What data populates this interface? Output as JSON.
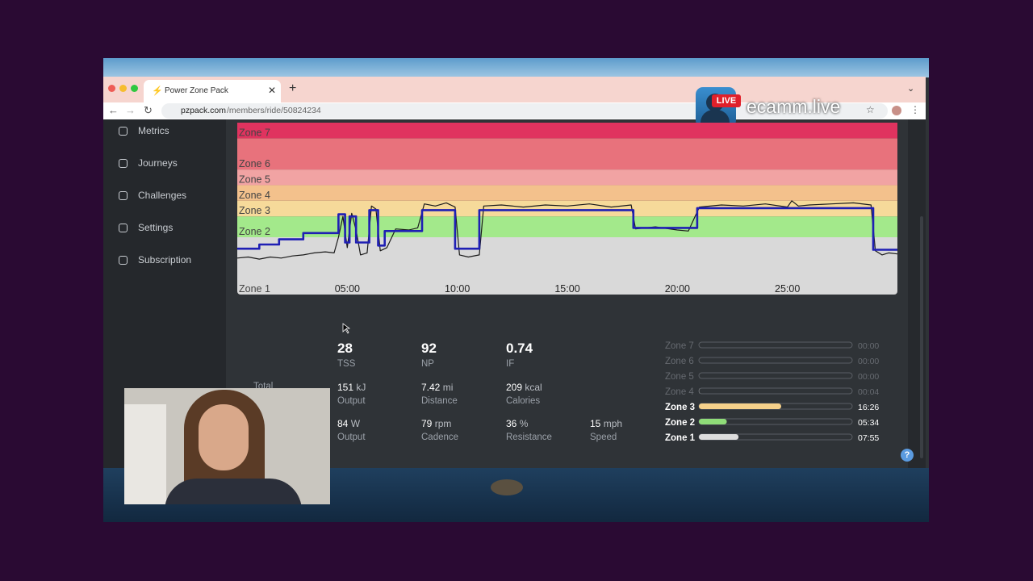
{
  "browser": {
    "tab_title": "Power Zone Pack",
    "url_domain": "pzpack.com",
    "url_path": "/members/ride/50824234"
  },
  "overlay": {
    "badge": "LIVE",
    "brand": "ecamm.live"
  },
  "sidebar": [
    "Metrics",
    "Journeys",
    "Challenges",
    "Settings",
    "Subscription"
  ],
  "chart_data": {
    "type": "line",
    "xlim": [
      0,
      30
    ],
    "xticks": [
      {
        "value": 5,
        "label": "05:00"
      },
      {
        "value": 10,
        "label": "10:00"
      },
      {
        "value": 15,
        "label": "15:00"
      },
      {
        "value": 20,
        "label": "20:00"
      },
      {
        "value": 25,
        "label": "25:00"
      }
    ],
    "ylim": [
      0,
      165
    ],
    "zones": [
      {
        "label": "Zone 1",
        "from": 0,
        "to": 55,
        "color": "#d9d9d9"
      },
      {
        "label": "Zone 2",
        "from": 55,
        "to": 75,
        "color": "#a3e98b"
      },
      {
        "label": "Zone 3",
        "from": 75,
        "to": 90,
        "color": "#f6da9a"
      },
      {
        "label": "Zone 4",
        "from": 90,
        "to": 105,
        "color": "#f3c18c"
      },
      {
        "label": "Zone 5",
        "from": 105,
        "to": 120,
        "color": "#f1a3a3"
      },
      {
        "label": "Zone 6",
        "from": 120,
        "to": 150,
        "color": "#e8727c"
      },
      {
        "label": "Zone 7",
        "from": 150,
        "to": 165,
        "color": "#e0335f"
      }
    ],
    "series": [
      {
        "color": "#1a1a1a",
        "width": 1.2,
        "x": [
          0,
          0.5,
          1,
          1.5,
          2,
          2.5,
          3,
          3.5,
          4,
          4.4,
          4.6,
          4.8,
          5.0,
          5.2,
          5.4,
          5.6,
          5.9,
          6.1,
          6.3,
          6.5,
          6.8,
          7.2,
          7.8,
          8.2,
          8.5,
          9,
          9.5,
          9.9,
          10.1,
          10.5,
          11,
          11.2,
          12,
          13,
          14,
          15,
          16,
          17,
          17.9,
          18.1,
          19,
          20,
          20.5,
          21,
          22,
          23,
          24,
          25,
          25.2,
          25.5,
          26,
          27,
          28,
          28.8,
          29,
          29.3,
          29.6,
          30
        ],
        "values": [
          35,
          36,
          34,
          36,
          35,
          37,
          38,
          40,
          41,
          40,
          55,
          75,
          45,
          78,
          62,
          38,
          40,
          85,
          82,
          42,
          45,
          63,
          62,
          64,
          87,
          85,
          88,
          84,
          38,
          36,
          38,
          85,
          86,
          84,
          86,
          85,
          87,
          84,
          86,
          63,
          65,
          62,
          61,
          84,
          86,
          85,
          87,
          84,
          90,
          85,
          86,
          87,
          88,
          86,
          42,
          38,
          40,
          39
        ]
      },
      {
        "color": "#1f1fb4",
        "width": 2.6,
        "x": [
          0,
          1,
          1,
          1.9,
          1.9,
          3,
          3,
          4.6,
          4.6,
          4.9,
          4.9,
          5.1,
          5.1,
          5.4,
          5.4,
          6.0,
          6.0,
          6.4,
          6.4,
          6.7,
          6.7,
          8.4,
          8.4,
          9.9,
          9.9,
          11,
          11,
          18,
          18,
          20.9,
          20.9,
          28.9,
          28.9,
          30
        ],
        "values": [
          44,
          44,
          48,
          48,
          53,
          53,
          59,
          59,
          77,
          77,
          50,
          50,
          75,
          75,
          50,
          50,
          81,
          81,
          47,
          47,
          61,
          61,
          81,
          81,
          44,
          44,
          81,
          81,
          64,
          64,
          83,
          83,
          43,
          43
        ]
      }
    ]
  },
  "stats": {
    "summary": [
      {
        "value": 28,
        "label": "TSS"
      },
      {
        "value": 92,
        "label": "NP"
      },
      {
        "value": 0.74,
        "label": "IF"
      }
    ],
    "total_label": "Total",
    "totals": [
      {
        "value": 151,
        "unit": "kJ",
        "label": "Output"
      },
      {
        "value": 7.42,
        "unit": "mi",
        "label": "Distance"
      },
      {
        "value": 209,
        "unit": "kcal",
        "label": "Calories"
      }
    ],
    "averages": [
      {
        "value": 84,
        "unit": "W",
        "label": "Output"
      },
      {
        "value": 79,
        "unit": "rpm",
        "label": "Cadence"
      },
      {
        "value": 36,
        "unit": "%",
        "label": "Resistance"
      },
      {
        "value": 15,
        "unit": "mph",
        "label": "Speed"
      }
    ]
  },
  "zone_times": {
    "xlim": [
      0,
      1836
    ],
    "labels": [
      "Zone 7",
      "Zone 6",
      "Zone 5",
      "Zone 4",
      "Zone 3",
      "Zone 2",
      "Zone 1"
    ],
    "values": [
      0,
      0,
      0,
      4,
      986,
      334,
      475
    ],
    "value_labels": [
      "00:00",
      "00:00",
      "00:00",
      "00:04",
      "16:26",
      "05:34",
      "07:55"
    ],
    "colors": [
      "#888",
      "#888",
      "#888",
      "#888",
      "#f5d08a",
      "#8fdc78",
      "#dddddd"
    ]
  },
  "help": "?"
}
